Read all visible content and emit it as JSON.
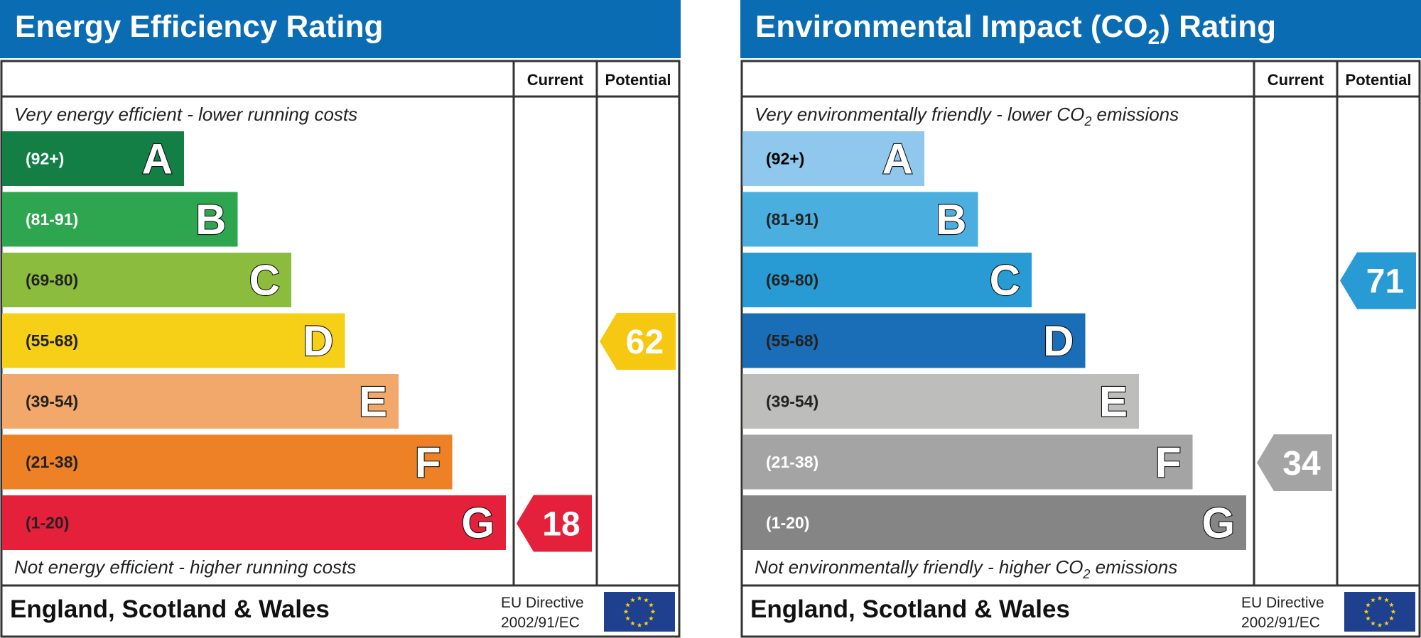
{
  "charts": [
    {
      "id": "energy",
      "title_main": "Energy Efficiency Rating",
      "title_sub": "",
      "title_end": "",
      "col_current": "Current",
      "col_potential": "Potential",
      "top_text_main": "Very energy efficient - lower running costs",
      "top_text_sub": "",
      "top_text_end": "",
      "bottom_text_main": "Not energy efficient - higher running costs",
      "bottom_text_sub": "",
      "bottom_text_end": "",
      "footer_region": "England, Scotland & Wales",
      "footer_directive_1": "EU Directive",
      "footer_directive_2": "2002/91/EC",
      "bands": [
        {
          "letter": "A",
          "range": "(92+)",
          "color": "#137f45",
          "range_color": "#ffffff"
        },
        {
          "letter": "B",
          "range": "(81-91)",
          "color": "#2ea64f",
          "range_color": "#ffffff"
        },
        {
          "letter": "C",
          "range": "(69-80)",
          "color": "#8cbc3e",
          "range_color": "#222222"
        },
        {
          "letter": "D",
          "range": "(55-68)",
          "color": "#f6cf17",
          "range_color": "#222222"
        },
        {
          "letter": "E",
          "range": "(39-54)",
          "color": "#f2a86a",
          "range_color": "#222222"
        },
        {
          "letter": "F",
          "range": "(21-38)",
          "color": "#ee8125",
          "range_color": "#222222"
        },
        {
          "letter": "G",
          "range": "(1-20)",
          "color": "#e4203b",
          "range_color": "#222222"
        }
      ],
      "current": {
        "value": "18",
        "band": "G",
        "color": "#e4203b"
      },
      "potential": {
        "value": "62",
        "band": "D",
        "color": "#f6c811"
      }
    },
    {
      "id": "environmental",
      "title_main": "Environmental Impact (CO",
      "title_sub": "2",
      "title_end": ") Rating",
      "col_current": "Current",
      "col_potential": "Potential",
      "top_text_main": "Very environmentally friendly - lower CO",
      "top_text_sub": "2",
      "top_text_end": " emissions",
      "bottom_text_main": "Not environmentally friendly - higher CO",
      "bottom_text_sub": "2",
      "bottom_text_end": " emissions",
      "footer_region": "England, Scotland & Wales",
      "footer_directive_1": "EU Directive",
      "footer_directive_2": "2002/91/EC",
      "bands": [
        {
          "letter": "A",
          "range": "(92+)",
          "color": "#8fc8ec",
          "range_color": "#000000"
        },
        {
          "letter": "B",
          "range": "(81-91)",
          "color": "#4aaedf",
          "range_color": "#222222"
        },
        {
          "letter": "C",
          "range": "(69-80)",
          "color": "#289ad4",
          "range_color": "#222222"
        },
        {
          "letter": "D",
          "range": "(55-68)",
          "color": "#1a6db7",
          "range_color": "#222222"
        },
        {
          "letter": "E",
          "range": "(39-54)",
          "color": "#bdbdbb",
          "range_color": "#222222"
        },
        {
          "letter": "F",
          "range": "(21-38)",
          "color": "#a4a4a4",
          "range_color": "#ffffff"
        },
        {
          "letter": "G",
          "range": "(1-20)",
          "color": "#858585",
          "range_color": "#ffffff"
        }
      ],
      "current": {
        "value": "34",
        "band": "F",
        "color": "#a4a4a4"
      },
      "potential": {
        "value": "71",
        "band": "C",
        "color": "#289ad4"
      }
    }
  ],
  "colors": {
    "header_blue": "#0a6cb2",
    "border": "#333333",
    "eu_flag_blue": "#1f3f8f",
    "eu_star": "#f6d10b"
  }
}
